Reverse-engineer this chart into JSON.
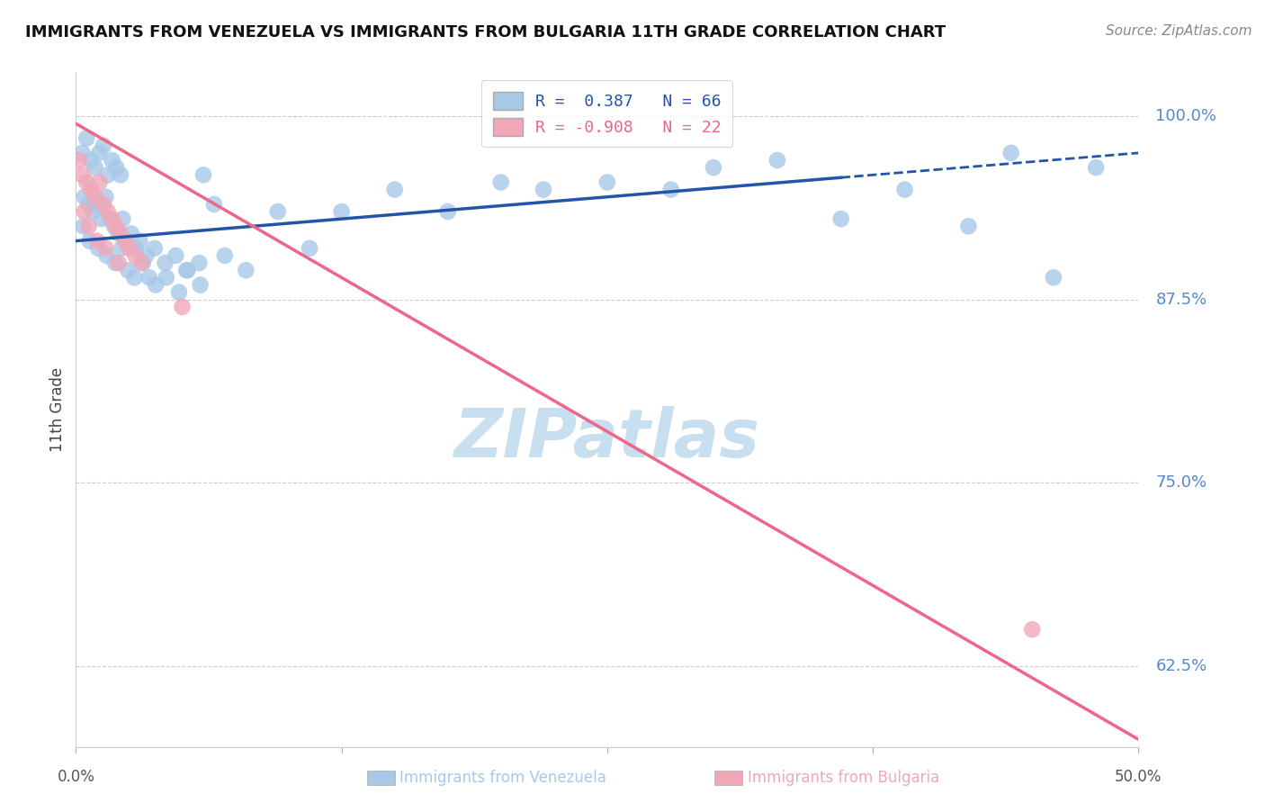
{
  "title": "IMMIGRANTS FROM VENEZUELA VS IMMIGRANTS FROM BULGARIA 11TH GRADE CORRELATION CHART",
  "source": "Source: ZipAtlas.com",
  "ylabel": "11th Grade",
  "xlim": [
    0.0,
    50.0
  ],
  "ylim": [
    57.0,
    103.0
  ],
  "yticks": [
    62.5,
    75.0,
    87.5,
    100.0
  ],
  "xtick_positions": [
    0.0,
    12.5,
    25.0,
    37.5,
    50.0
  ],
  "blue_color": "#a8c8e8",
  "pink_color": "#f0a8b8",
  "blue_line_color": "#2255aa",
  "pink_line_color": "#ee6688",
  "R_blue": 0.387,
  "N_blue": 66,
  "R_pink": -0.908,
  "N_pink": 22,
  "blue_points": [
    [
      0.3,
      97.5
    ],
    [
      0.5,
      98.5
    ],
    [
      0.7,
      97.0
    ],
    [
      0.9,
      96.5
    ],
    [
      1.1,
      97.5
    ],
    [
      1.3,
      98.0
    ],
    [
      1.5,
      96.0
    ],
    [
      1.7,
      97.0
    ],
    [
      1.9,
      96.5
    ],
    [
      2.1,
      96.0
    ],
    [
      0.4,
      94.5
    ],
    [
      0.6,
      94.0
    ],
    [
      0.8,
      93.5
    ],
    [
      1.0,
      94.0
    ],
    [
      1.2,
      93.0
    ],
    [
      1.4,
      94.5
    ],
    [
      1.6,
      93.0
    ],
    [
      1.8,
      92.5
    ],
    [
      2.0,
      92.0
    ],
    [
      2.2,
      93.0
    ],
    [
      2.4,
      91.5
    ],
    [
      2.6,
      92.0
    ],
    [
      2.8,
      91.0
    ],
    [
      3.0,
      91.5
    ],
    [
      3.3,
      90.5
    ],
    [
      3.7,
      91.0
    ],
    [
      4.2,
      90.0
    ],
    [
      4.7,
      90.5
    ],
    [
      5.2,
      89.5
    ],
    [
      5.8,
      90.0
    ],
    [
      0.35,
      92.5
    ],
    [
      0.65,
      91.5
    ],
    [
      1.05,
      91.0
    ],
    [
      1.45,
      90.5
    ],
    [
      1.85,
      90.0
    ],
    [
      2.15,
      91.0
    ],
    [
      2.45,
      89.5
    ],
    [
      2.75,
      89.0
    ],
    [
      3.15,
      90.0
    ],
    [
      3.45,
      89.0
    ],
    [
      3.75,
      88.5
    ],
    [
      4.25,
      89.0
    ],
    [
      4.85,
      88.0
    ],
    [
      5.25,
      89.5
    ],
    [
      5.85,
      88.5
    ],
    [
      6.5,
      94.0
    ],
    [
      7.0,
      90.5
    ],
    [
      8.0,
      89.5
    ],
    [
      9.5,
      93.5
    ],
    [
      11.0,
      91.0
    ],
    [
      12.5,
      93.5
    ],
    [
      15.0,
      95.0
    ],
    [
      17.5,
      93.5
    ],
    [
      20.0,
      95.5
    ],
    [
      22.0,
      95.0
    ],
    [
      25.0,
      95.5
    ],
    [
      28.0,
      95.0
    ],
    [
      30.0,
      96.5
    ],
    [
      33.0,
      97.0
    ],
    [
      36.0,
      93.0
    ],
    [
      39.0,
      95.0
    ],
    [
      42.0,
      92.5
    ],
    [
      44.0,
      97.5
    ],
    [
      46.0,
      89.0
    ],
    [
      48.0,
      96.5
    ],
    [
      6.0,
      96.0
    ]
  ],
  "pink_points": [
    [
      0.15,
      97.0
    ],
    [
      0.3,
      96.0
    ],
    [
      0.5,
      95.5
    ],
    [
      0.7,
      95.0
    ],
    [
      0.9,
      94.5
    ],
    [
      1.1,
      95.5
    ],
    [
      1.3,
      94.0
    ],
    [
      1.5,
      93.5
    ],
    [
      1.7,
      93.0
    ],
    [
      1.9,
      92.5
    ],
    [
      2.1,
      92.0
    ],
    [
      2.3,
      91.5
    ],
    [
      2.5,
      91.0
    ],
    [
      2.8,
      90.5
    ],
    [
      3.1,
      90.0
    ],
    [
      0.4,
      93.5
    ],
    [
      0.6,
      92.5
    ],
    [
      1.0,
      91.5
    ],
    [
      1.4,
      91.0
    ],
    [
      2.0,
      90.0
    ],
    [
      5.0,
      87.0
    ],
    [
      45.0,
      65.0
    ]
  ],
  "blue_trend_x": [
    0.0,
    50.0
  ],
  "blue_trend_y": [
    91.5,
    97.5
  ],
  "blue_solid_end_x": 36.0,
  "pink_trend_x": [
    0.0,
    50.0
  ],
  "pink_trend_y": [
    99.5,
    57.5
  ],
  "watermark": "ZIPatlas",
  "watermark_color": "#c8dff0",
  "background_color": "#ffffff",
  "grid_color": "#cccccc",
  "tick_color": "#5588cc",
  "title_color": "#111111",
  "source_color": "#888888",
  "legend_blue_label": "R =  0.387   N = 66",
  "legend_pink_label": "R = -0.908   N = 22",
  "bottom_label_blue": "Immigrants from Venezuela",
  "bottom_label_pink": "Immigrants from Bulgaria"
}
